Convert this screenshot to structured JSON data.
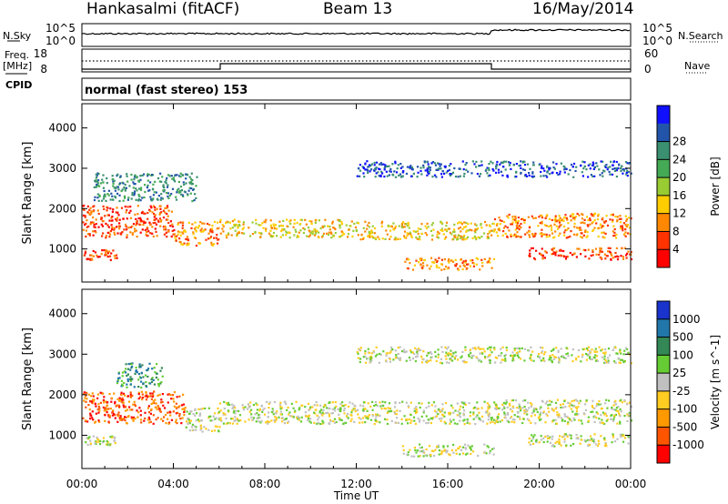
{
  "header": {
    "title": "Hankasalmi (fitACF)",
    "beam": "Beam 13",
    "date": "16/May/2014"
  },
  "strip": {
    "nsky_label": "N.Sky",
    "nsearch_label": "N.Search",
    "freq_label_line1": "Freq.",
    "freq_label_line2": "[MHz]",
    "nave_label": "Nave",
    "cpid_label": "CPID",
    "cpid_text": "normal (fast stereo) 153",
    "noise_ticks": [
      "10^5",
      "10^0"
    ],
    "freq_ticks": [
      "18",
      "8"
    ],
    "nave_ticks": [
      "60",
      "0"
    ]
  },
  "chart_data": [
    {
      "type": "heatmap",
      "name": "power",
      "xlabel": "Time UT",
      "ylabel": "Slant Range [km]",
      "x_ticks": [
        "00:00",
        "04:00",
        "08:00",
        "12:00",
        "16:00",
        "20:00",
        "00:00"
      ],
      "y_ticks": [
        1000,
        2000,
        3000,
        4000
      ],
      "ylim": [
        180,
        4600
      ],
      "xlim_hours": [
        0,
        24
      ],
      "colorbar_label": "Power [dB]",
      "colorbar_ticks": [
        "4",
        "8",
        "12",
        "16",
        "20",
        "24",
        "28"
      ],
      "colors": [
        "#1010ff",
        "#2255aa",
        "#3a9070",
        "#44aa55",
        "#99cc33",
        "#ffcc00",
        "#ff8800",
        "#ff3300",
        "#ff0000"
      ],
      "scatter_bands": [
        {
          "t": [
            0.0,
            4.0
          ],
          "r": [
            1300,
            2100
          ],
          "level": 7
        },
        {
          "t": [
            4.0,
            6.0
          ],
          "r": [
            1100,
            1700
          ],
          "level": 6
        },
        {
          "t": [
            6.0,
            12.0
          ],
          "r": [
            1300,
            1750
          ],
          "level": 5
        },
        {
          "t": [
            12.0,
            18.0
          ],
          "r": [
            1250,
            1700
          ],
          "level": 5
        },
        {
          "t": [
            18.0,
            24.0
          ],
          "r": [
            1300,
            1900
          ],
          "level": 6
        },
        {
          "t": [
            0.0,
            1.5
          ],
          "r": [
            750,
            1000
          ],
          "level": 7
        },
        {
          "t": [
            14.0,
            18.0
          ],
          "r": [
            500,
            800
          ],
          "level": 6
        },
        {
          "t": [
            19.5,
            24.0
          ],
          "r": [
            750,
            1050
          ],
          "level": 7
        },
        {
          "t": [
            0.5,
            5.0
          ],
          "r": [
            2200,
            2900
          ],
          "level": 2
        },
        {
          "t": [
            12.0,
            24.0
          ],
          "r": [
            2800,
            3200
          ],
          "level": 1
        }
      ]
    },
    {
      "type": "heatmap",
      "name": "velocity",
      "xlabel": "Time UT",
      "ylabel": "Slant Range [km]",
      "x_ticks": [
        "00:00",
        "04:00",
        "08:00",
        "12:00",
        "16:00",
        "20:00",
        "00:00"
      ],
      "y_ticks": [
        1000,
        2000,
        3000,
        4000
      ],
      "ylim": [
        180,
        4600
      ],
      "xlim_hours": [
        0,
        24
      ],
      "colorbar_label": "Velocity [m s^-1]",
      "colorbar_ticks": [
        "1000",
        "500",
        "100",
        "25",
        "-25",
        "-100",
        "-500",
        "-1000"
      ],
      "colors": [
        "#1a33cc",
        "#2277aa",
        "#338855",
        "#66cc33",
        "#c0c0c0",
        "#ffcc22",
        "#ff9900",
        "#ff5500",
        "#ff0000"
      ],
      "scatter_bands": [
        {
          "t": [
            0.0,
            4.5
          ],
          "r": [
            1300,
            2100
          ],
          "level": 7
        },
        {
          "t": [
            4.5,
            6.0
          ],
          "r": [
            1100,
            1700
          ],
          "level": 4
        },
        {
          "t": [
            6.0,
            18.0
          ],
          "r": [
            1300,
            1850
          ],
          "level": 4
        },
        {
          "t": [
            18.0,
            24.0
          ],
          "r": [
            1300,
            1900
          ],
          "level": 4
        },
        {
          "t": [
            0.0,
            1.5
          ],
          "r": [
            750,
            1000
          ],
          "level": 4
        },
        {
          "t": [
            14.0,
            18.0
          ],
          "r": [
            500,
            800
          ],
          "level": 4
        },
        {
          "t": [
            19.5,
            24.0
          ],
          "r": [
            750,
            1050
          ],
          "level": 4
        },
        {
          "t": [
            1.5,
            3.5
          ],
          "r": [
            2200,
            2800
          ],
          "level": 2
        },
        {
          "t": [
            12.0,
            24.0
          ],
          "r": [
            2800,
            3200
          ],
          "level": 4
        }
      ]
    }
  ]
}
